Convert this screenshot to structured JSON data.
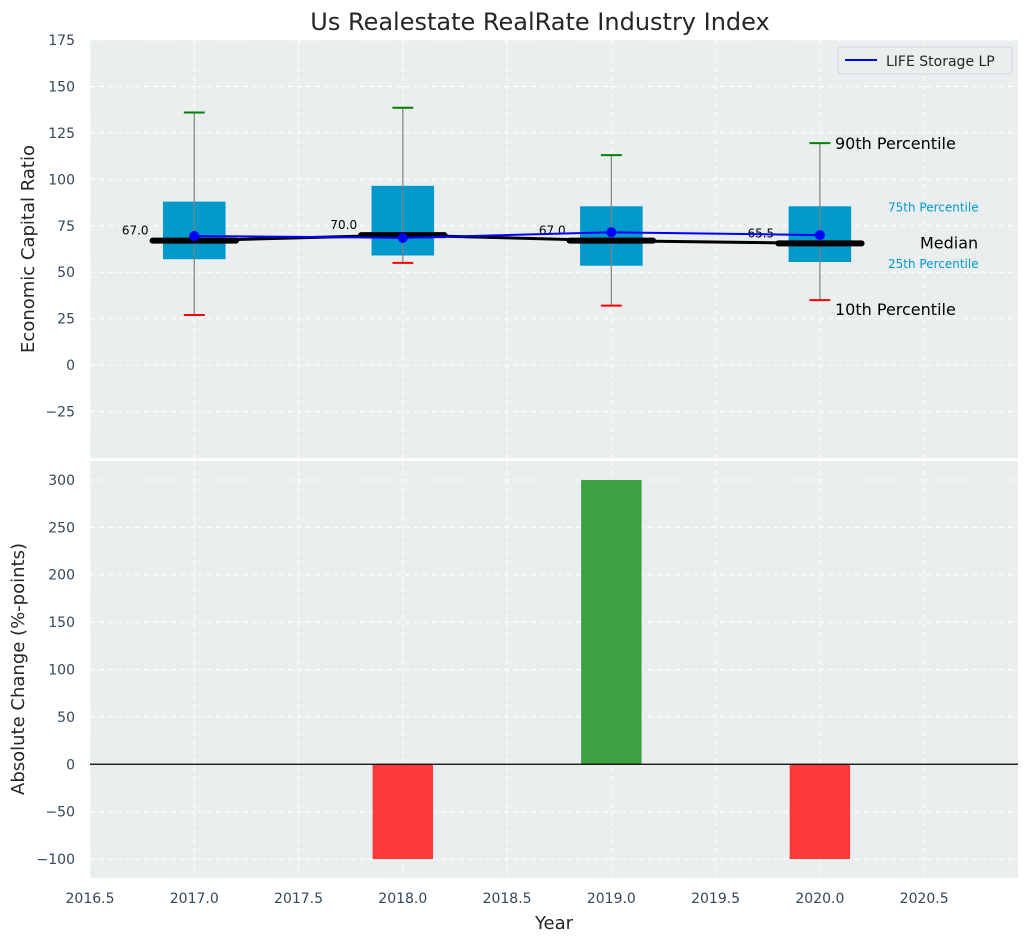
{
  "chart_data": [
    {
      "type": "box",
      "title": "Us Realestate RealRate Industry Index",
      "ylabel": "Economic Capital Ratio",
      "xlabel": "",
      "ylim": [
        -50,
        175
      ],
      "yticks": [
        -25,
        0,
        25,
        50,
        75,
        100,
        125,
        150,
        175
      ],
      "grid": true,
      "legend": {
        "placement": "top-right",
        "entries": [
          "LIFE Storage LP"
        ]
      },
      "x": [
        2017,
        2018,
        2019,
        2020
      ],
      "boxes": [
        {
          "year": 2017,
          "p10": 27,
          "p25": 57,
          "median": 67.0,
          "p75": 88,
          "p90": 136,
          "median_label": "67.0"
        },
        {
          "year": 2018,
          "p10": 55,
          "p25": 59,
          "median": 70.0,
          "p75": 96.5,
          "p90": 138.5,
          "median_label": "70.0"
        },
        {
          "year": 2019,
          "p10": 32,
          "p25": 53.5,
          "median": 67.0,
          "p75": 85.5,
          "p90": 113,
          "median_label": "67.0"
        },
        {
          "year": 2020,
          "p10": 35,
          "p25": 55.5,
          "median": 65.5,
          "p75": 85.5,
          "p90": 119.5,
          "median_label": "65.5"
        }
      ],
      "series": [
        {
          "name": "LIFE Storage LP",
          "values": [
            69.5,
            68.5,
            71.5,
            70.0
          ],
          "color": "#0000ff"
        }
      ],
      "annotations": {
        "p90": "90th Percentile",
        "p75": "75th Percentile",
        "median": "Median",
        "p25": "25th Percentile",
        "p10": "10th Percentile"
      },
      "colors": {
        "box": "#0099cc",
        "p90_cap": "#008000",
        "p10_cap": "#ff0000",
        "median": "#000000",
        "background": "#eaeeef",
        "annotation_small": "#0099cc"
      }
    },
    {
      "type": "bar",
      "title": "",
      "xlabel": "Year",
      "ylabel": "Absolute Change (%-points)",
      "xlim": [
        2016.5,
        2020.95
      ],
      "xticks": [
        "2016.5",
        "2017.0",
        "2017.5",
        "2018.0",
        "2018.5",
        "2019.0",
        "2019.5",
        "2020.0",
        "2020.5"
      ],
      "ylim": [
        -120,
        320
      ],
      "yticks": [
        -100,
        -50,
        0,
        50,
        100,
        150,
        200,
        250,
        300
      ],
      "grid": true,
      "x": [
        2018,
        2019,
        2020
      ],
      "values": [
        -100,
        300,
        -100
      ],
      "colors": {
        "positive": "#2e9932",
        "negative": "#ff2a2a"
      }
    }
  ]
}
